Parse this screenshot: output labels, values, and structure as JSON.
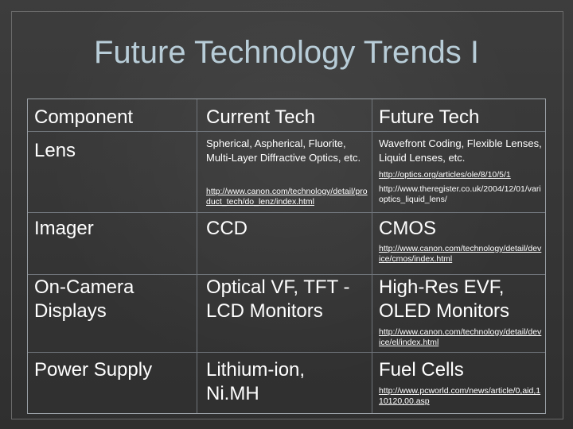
{
  "slide": {
    "title": "Future Technology Trends I"
  },
  "table": {
    "headers": [
      "Component",
      "Current Tech",
      "Future Tech"
    ],
    "rows": [
      {
        "component": "Lens",
        "current": "Spherical, Aspherical, Fluorite, Multi-Layer Diffractive Optics, etc.",
        "current_link": "http://www.canon.com/technology/detail/product_tech/do_lenz/index.html",
        "future": "Wavefront Coding, Flexible Lenses, Liquid Lenses, etc.",
        "future_link1": "http://optics.org/articles/ole/8/10/5/1",
        "future_link2": "http://www.theregister.co.uk/2004/12/01/varioptics_liquid_lens/"
      },
      {
        "component": "Imager",
        "current": "CCD",
        "future": "CMOS",
        "future_link": "http://www.canon.com/technology/detail/device/cmos/index.html"
      },
      {
        "component": "On-Camera Displays",
        "current": "Optical VF, TFT -LCD Monitors",
        "future": "High-Res EVF, OLED Monitors",
        "future_link": "http://www.canon.com/technology/detail/device/el/index.html"
      },
      {
        "component": "Power Supply",
        "current": "Lithium-ion, Ni.MH",
        "future": "Fuel Cells",
        "future_link": "http://www.pcworld.com/news/article/0,aid,110120,00.asp"
      }
    ]
  }
}
